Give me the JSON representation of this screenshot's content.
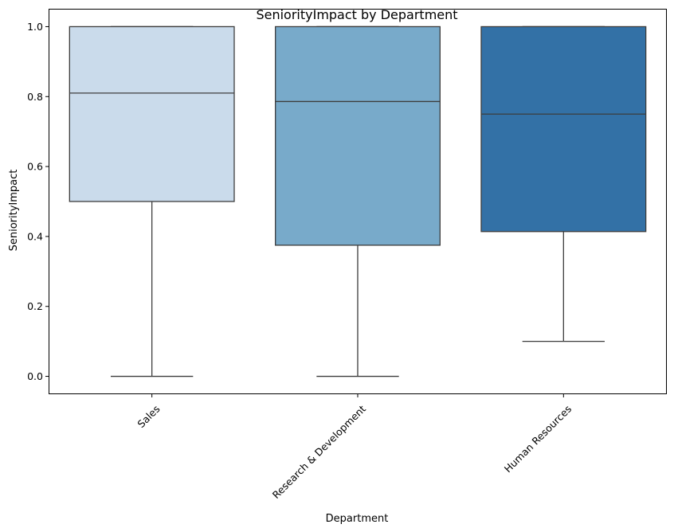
{
  "chart_data": {
    "type": "box",
    "title": "SeniorityImpact by Department",
    "xlabel": "Department",
    "ylabel": "SeniorityImpact",
    "ylim": [
      -0.05,
      1.05
    ],
    "yticks": [
      0.0,
      0.2,
      0.4,
      0.6,
      0.8,
      1.0
    ],
    "ytick_labels": [
      "0.0",
      "0.2",
      "0.4",
      "0.6",
      "0.8",
      "1.0"
    ],
    "grid": false,
    "legend": "none",
    "categories": [
      "Sales",
      "Research & Development",
      "Human Resources"
    ],
    "boxes": [
      {
        "category": "Sales",
        "whisker_low": 0.0,
        "q1": 0.5,
        "median": 0.81,
        "q3": 1.0,
        "whisker_high": 1.0,
        "color": "#cadbeb"
      },
      {
        "category": "Research & Development",
        "whisker_low": 0.0,
        "q1": 0.375,
        "median": 0.786,
        "q3": 1.0,
        "whisker_high": 1.0,
        "color": "#78aaca"
      },
      {
        "category": "Human Resources",
        "whisker_low": 0.1,
        "q1": 0.414,
        "median": 0.75,
        "q3": 1.0,
        "whisker_high": 1.0,
        "color": "#3371a6"
      }
    ]
  }
}
